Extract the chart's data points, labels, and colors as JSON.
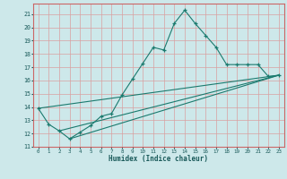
{
  "title": "",
  "xlabel": "Humidex (Indice chaleur)",
  "ylabel": "",
  "background_color": "#cde8ea",
  "grid_color": "#b0d4d6",
  "line_color": "#1a7a6e",
  "xlim": [
    -0.5,
    23.5
  ],
  "ylim": [
    11,
    21.8
  ],
  "yticks": [
    11,
    12,
    13,
    14,
    15,
    16,
    17,
    18,
    19,
    20,
    21
  ],
  "xticks": [
    0,
    1,
    2,
    3,
    4,
    5,
    6,
    7,
    8,
    9,
    10,
    11,
    12,
    13,
    14,
    15,
    16,
    17,
    18,
    19,
    20,
    21,
    22,
    23
  ],
  "line1_x": [
    0,
    1,
    2,
    3,
    4,
    5,
    6,
    7,
    8,
    9,
    10,
    11,
    12,
    13,
    14,
    15,
    16,
    17,
    18,
    19,
    20,
    21,
    22,
    23
  ],
  "line1_y": [
    13.9,
    12.7,
    12.2,
    11.6,
    12.1,
    12.6,
    13.3,
    13.5,
    14.9,
    16.1,
    17.3,
    18.5,
    18.3,
    20.3,
    21.3,
    20.3,
    19.4,
    18.5,
    17.2,
    17.2,
    17.2,
    17.2,
    16.3,
    16.4
  ],
  "line2_x": [
    0,
    23
  ],
  "line2_y": [
    13.9,
    16.4
  ],
  "line3_x": [
    2,
    23
  ],
  "line3_y": [
    12.2,
    16.4
  ],
  "line4_x": [
    3,
    23
  ],
  "line4_y": [
    11.6,
    16.4
  ]
}
